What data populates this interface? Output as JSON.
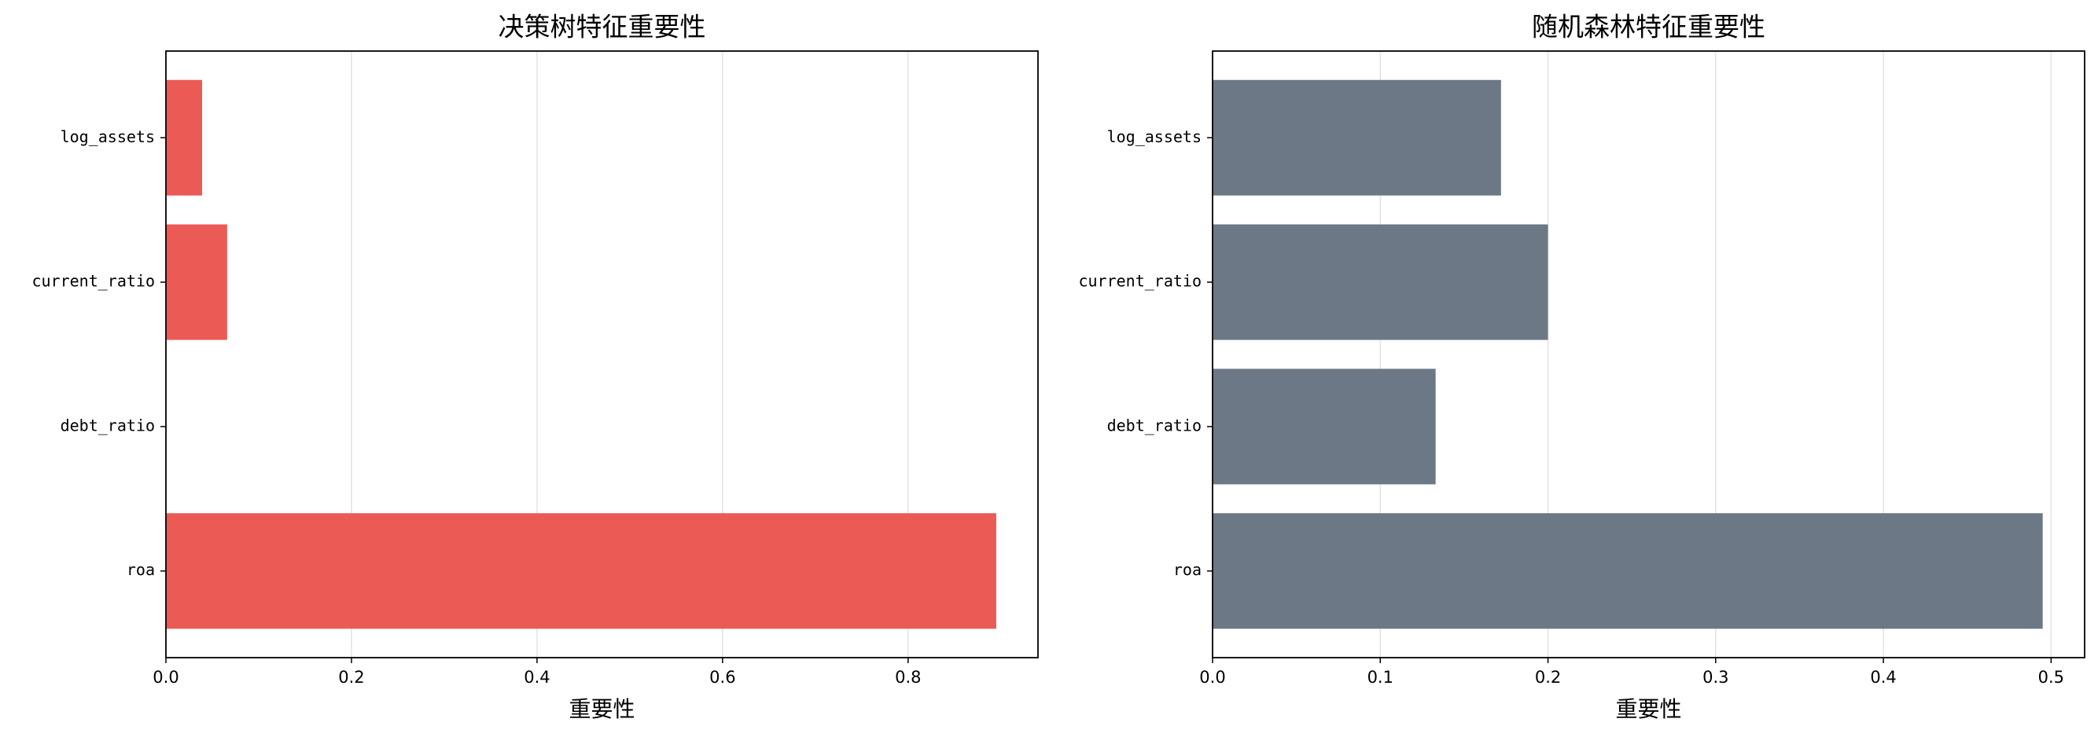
{
  "chart_data": [
    {
      "type": "barh",
      "title": "决策树特征重要性",
      "x_label": "重要性",
      "categories": [
        "roa",
        "debt_ratio",
        "current_ratio",
        "log_assets"
      ],
      "values": [
        0.895,
        0,
        0.066,
        0.039
      ],
      "color": "#eb5a55",
      "xlim": [
        0,
        0.94
      ],
      "xticks": [
        {
          "value": 0,
          "label": "0.0"
        },
        {
          "value": 0.2,
          "label": "0.2"
        },
        {
          "value": 0.4,
          "label": "0.4"
        },
        {
          "value": 0.6,
          "label": "0.6"
        },
        {
          "value": 0.8,
          "label": "0.8"
        }
      ],
      "grid": true
    },
    {
      "type": "barh",
      "title": "随机森林特征重要性",
      "x_label": "重要性",
      "categories": [
        "roa",
        "debt_ratio",
        "current_ratio",
        "log_assets"
      ],
      "values": [
        0.495,
        0.133,
        0.2,
        0.172
      ],
      "color": "#6c7885",
      "xlim": [
        0,
        0.52
      ],
      "xticks": [
        {
          "value": 0,
          "label": "0.0"
        },
        {
          "value": 0.1,
          "label": "0.1"
        },
        {
          "value": 0.2,
          "label": "0.2"
        },
        {
          "value": 0.3,
          "label": "0.3"
        },
        {
          "value": 0.4,
          "label": "0.4"
        },
        {
          "value": 0.5,
          "label": "0.5"
        }
      ],
      "grid": true
    }
  ]
}
